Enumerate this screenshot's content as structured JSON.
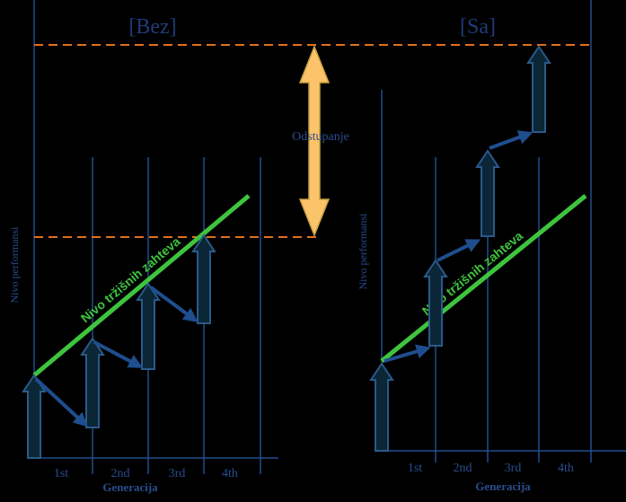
{
  "left": {
    "title": "[Bez]",
    "y_label": "Nivo performansi",
    "x_label": "Generacija",
    "generations": [
      "1st",
      "2nd",
      "3rd",
      "4th"
    ],
    "line_label": "Nivo tržišnih zahteva"
  },
  "right": {
    "title": "[Sa]",
    "y_label": "Nivo performansi",
    "x_label": "Generacija",
    "generations": [
      "1st",
      "2nd",
      "3rd",
      "4th"
    ],
    "line_label": "Nivo tržišnih zahteva"
  },
  "gap_label": "Odstupanje"
}
